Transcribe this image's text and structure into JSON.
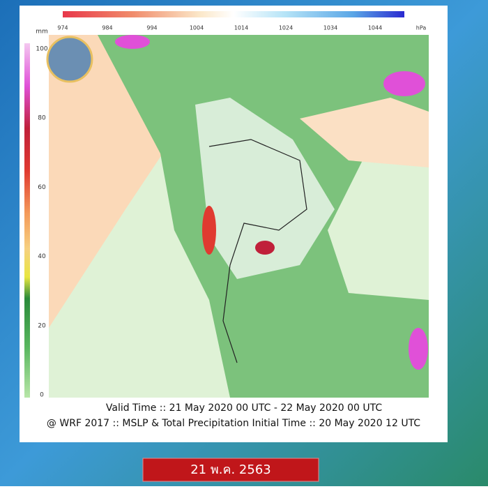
{
  "pressure_scale": {
    "labels": [
      "974",
      "984",
      "994",
      "1004",
      "1014",
      "1024",
      "1034",
      "1044"
    ],
    "unit": "hPa"
  },
  "precip_scale": {
    "labels": [
      "100",
      "80",
      "60",
      "40",
      "20",
      "0"
    ],
    "unit": "mm"
  },
  "caption": {
    "line1": "Valid Time :: 21 May 2020 00 UTC - 22 May 2020 00 UTC",
    "line2": "@ WRF 2017 :: MSLP & Total Precipitation Initial Time :: 20 May 2020 12 UTC"
  },
  "date_label": "21 พ.ค. 2563"
}
